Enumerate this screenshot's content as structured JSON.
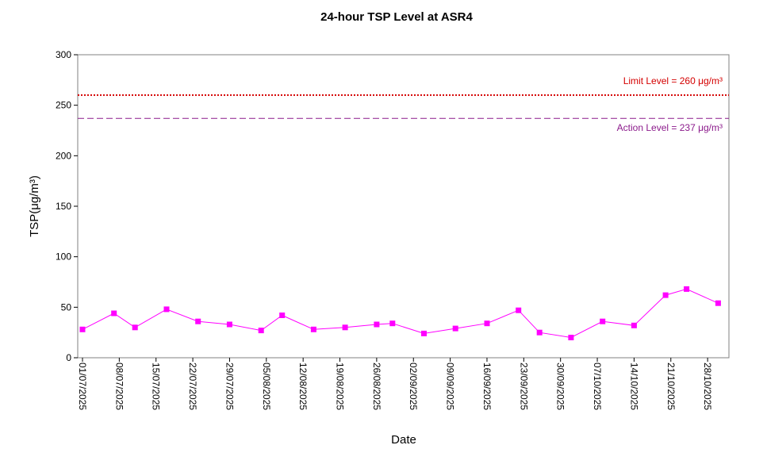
{
  "chart_data": {
    "type": "line",
    "title": "24-hour TSP Level at ASR4",
    "xlabel": "Date",
    "ylabel": "TSP(μg/m³)",
    "ylim": [
      0,
      300
    ],
    "yticks": [
      0,
      50,
      100,
      150,
      200,
      250,
      300
    ],
    "x_range": [
      "01/07/2025",
      "31/10/2025"
    ],
    "x_ticks": [
      "01/07/2025",
      "08/07/2025",
      "15/07/2025",
      "22/07/2025",
      "29/07/2025",
      "05/08/2025",
      "12/08/2025",
      "19/08/2025",
      "26/08/2025",
      "02/09/2025",
      "09/09/2025",
      "16/09/2025",
      "23/09/2025",
      "30/09/2025",
      "07/10/2025",
      "14/10/2025",
      "21/10/2025",
      "28/10/2025"
    ],
    "grid": false,
    "series": [
      {
        "color": "#ff00ff",
        "marker": "square",
        "points": [
          {
            "x": "01/07/2025",
            "y": 28
          },
          {
            "x": "07/07/2025",
            "y": 44
          },
          {
            "x": "11/07/2025",
            "y": 30
          },
          {
            "x": "17/07/2025",
            "y": 48
          },
          {
            "x": "23/07/2025",
            "y": 36
          },
          {
            "x": "29/07/2025",
            "y": 33
          },
          {
            "x": "04/08/2025",
            "y": 27
          },
          {
            "x": "08/08/2025",
            "y": 42
          },
          {
            "x": "14/08/2025",
            "y": 28
          },
          {
            "x": "20/08/2025",
            "y": 30
          },
          {
            "x": "26/08/2025",
            "y": 33
          },
          {
            "x": "29/08/2025",
            "y": 34
          },
          {
            "x": "04/09/2025",
            "y": 24
          },
          {
            "x": "10/09/2025",
            "y": 29
          },
          {
            "x": "16/09/2025",
            "y": 34
          },
          {
            "x": "22/09/2025",
            "y": 47
          },
          {
            "x": "26/09/2025",
            "y": 25
          },
          {
            "x": "02/10/2025",
            "y": 20
          },
          {
            "x": "08/10/2025",
            "y": 36
          },
          {
            "x": "14/10/2025",
            "y": 32
          },
          {
            "x": "20/10/2025",
            "y": 62
          },
          {
            "x": "24/10/2025",
            "y": 68
          },
          {
            "x": "30/10/2025",
            "y": 54
          }
        ]
      }
    ],
    "reference_lines": [
      {
        "label": "Limit Level  = 260 μg/m³",
        "value": 260,
        "color": "#d40000",
        "style": "dotted"
      },
      {
        "label": "Action Level  = 237 μg/m³",
        "value": 237,
        "color": "#8b1a8b",
        "style": "dashed"
      }
    ]
  }
}
